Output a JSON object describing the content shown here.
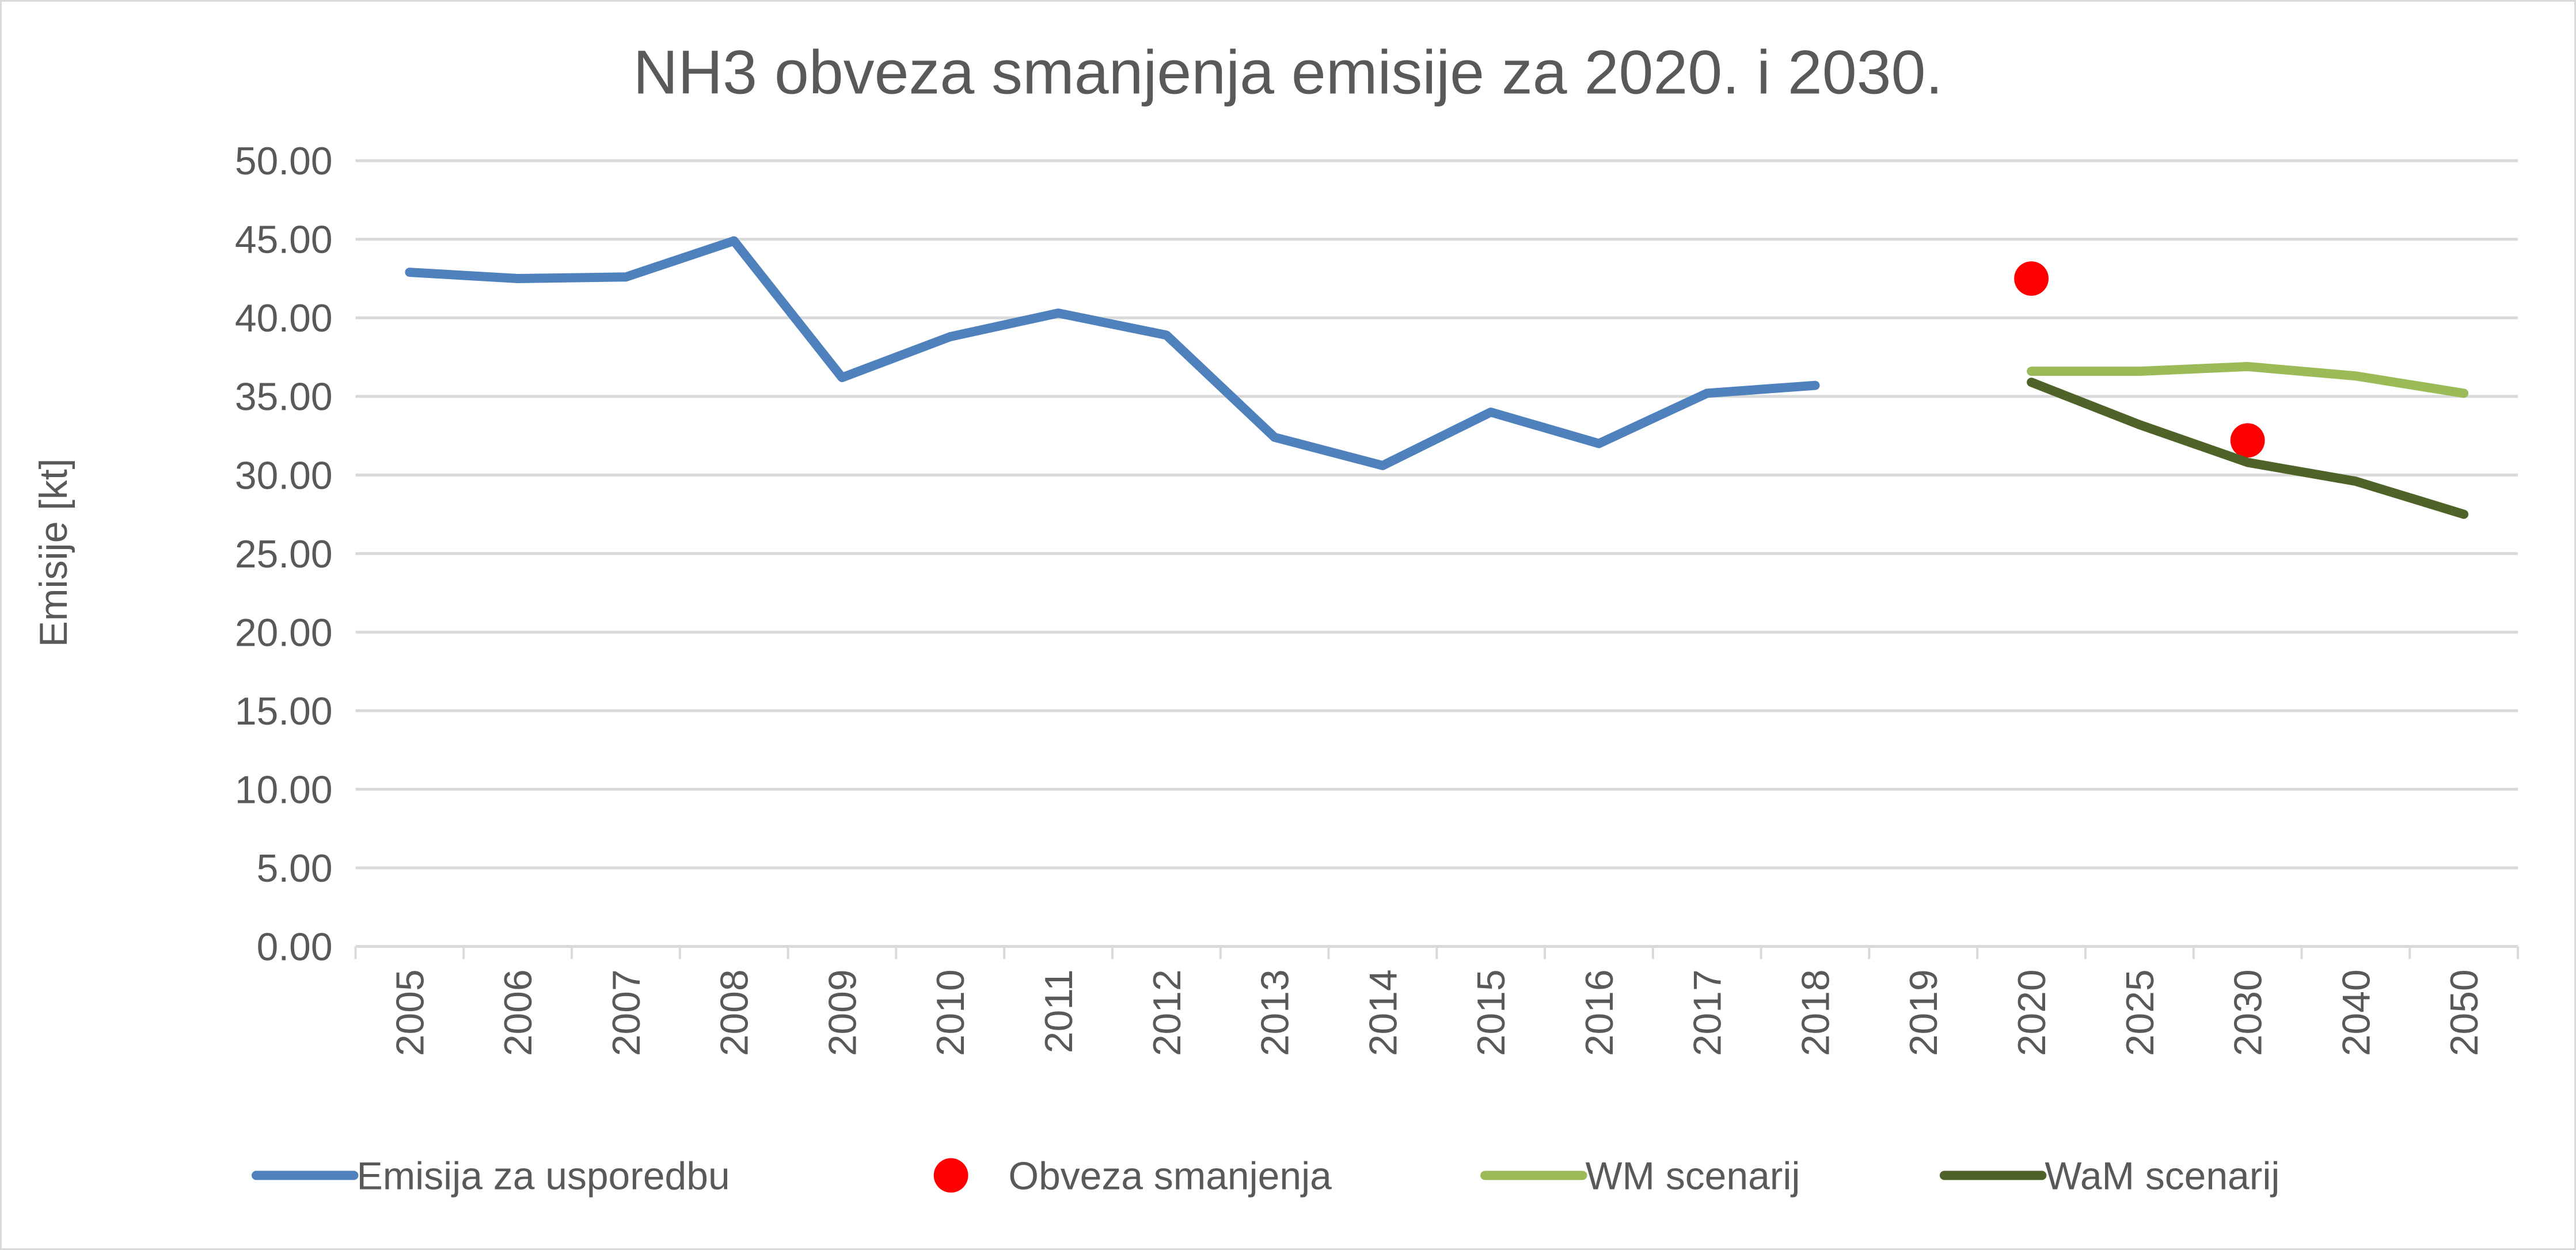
{
  "chart_data": {
    "type": "line",
    "title": "NH3 obveza smanjenja emisije za 2020. i 2030.",
    "xlabel": "",
    "ylabel": "Emisije [kt]",
    "ylim": [
      0,
      50
    ],
    "yticks": [
      "0.00",
      "5.00",
      "10.00",
      "15.00",
      "20.00",
      "25.00",
      "30.00",
      "35.00",
      "40.00",
      "45.00",
      "50.00"
    ],
    "grid": true,
    "legend_position": "bottom",
    "categories": [
      "2005",
      "2006",
      "2007",
      "2008",
      "2009",
      "2010",
      "2011",
      "2012",
      "2013",
      "2014",
      "2015",
      "2016",
      "2017",
      "2018",
      "2019",
      "2020",
      "2025",
      "2030",
      "2040",
      "2050"
    ],
    "series": [
      {
        "name": "Emisija za usporedbu",
        "kind": "line",
        "color": "#4f81bd",
        "values": [
          42.9,
          42.5,
          42.6,
          44.9,
          36.2,
          38.8,
          40.3,
          38.9,
          32.4,
          30.6,
          34.0,
          32.0,
          35.2,
          35.7,
          null,
          null,
          null,
          null,
          null,
          null
        ]
      },
      {
        "name": "Obveza smanjenja",
        "kind": "marker",
        "color": "#ff0000",
        "values": [
          null,
          null,
          null,
          null,
          null,
          null,
          null,
          null,
          null,
          null,
          null,
          null,
          null,
          null,
          null,
          42.5,
          null,
          32.2,
          null,
          null
        ]
      },
      {
        "name": "WM scenarij",
        "kind": "line",
        "color": "#9bbb59",
        "values": [
          null,
          null,
          null,
          null,
          null,
          null,
          null,
          null,
          null,
          null,
          null,
          null,
          null,
          null,
          null,
          36.6,
          36.6,
          36.9,
          36.3,
          35.2
        ]
      },
      {
        "name": "WaM scenarij",
        "kind": "line",
        "color": "#4f6228",
        "values": [
          null,
          null,
          null,
          null,
          null,
          null,
          null,
          null,
          null,
          null,
          null,
          null,
          null,
          null,
          null,
          35.9,
          33.2,
          30.8,
          29.6,
          27.5
        ]
      }
    ]
  }
}
